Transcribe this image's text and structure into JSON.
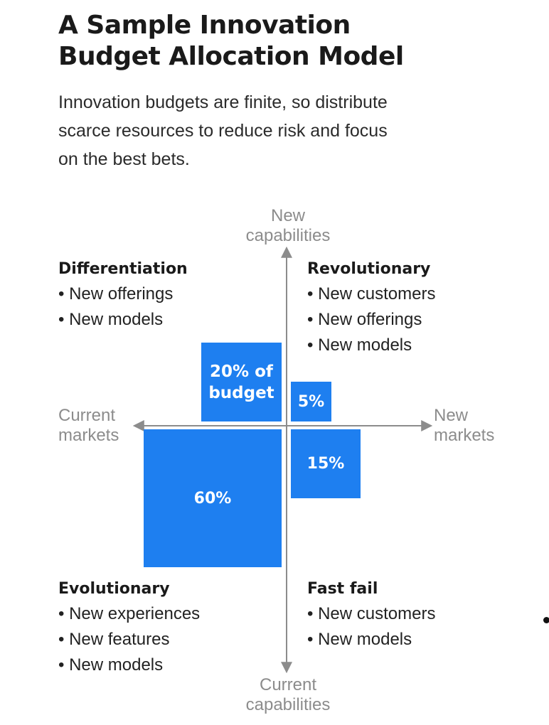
{
  "title": {
    "line1": "A Sample Innovation",
    "line2": "Budget Allocation Model"
  },
  "subtitle": {
    "line1": "Innovation budgets are finite, so distribute",
    "line2": "scarce resources to reduce risk and focus",
    "line3": "on the best bets."
  },
  "axes": {
    "top": {
      "line1": "New",
      "line2": "capabilities"
    },
    "bottom": {
      "line1": "Current",
      "line2": "capabilities"
    },
    "left": {
      "line1": "Current",
      "line2": "markets"
    },
    "right": {
      "line1": "New",
      "line2": "markets"
    }
  },
  "quadrants": {
    "top_left": {
      "heading": "Differentiation",
      "items": [
        "• New offerings",
        "• New models"
      ]
    },
    "top_right": {
      "heading": "Revolutionary",
      "items": [
        "• New customers",
        "• New offerings",
        "• New models"
      ]
    },
    "bottom_left": {
      "heading": "Evolutionary",
      "items": [
        "• New experiences",
        "• New features",
        "• New models"
      ]
    },
    "bottom_right": {
      "heading": "Fast fail",
      "items": [
        "• New customers",
        "• New models"
      ]
    }
  },
  "allocations": {
    "differentiation": {
      "line1": "20% of",
      "line2": "budget",
      "value": 20
    },
    "revolutionary": {
      "label": "5%",
      "value": 5
    },
    "fast_fail": {
      "label": "15%",
      "value": 15
    },
    "evolutionary": {
      "label": "60%",
      "value": 60
    }
  },
  "colors": {
    "block": "#1e7ff0",
    "axis": "#8c8c8c"
  }
}
